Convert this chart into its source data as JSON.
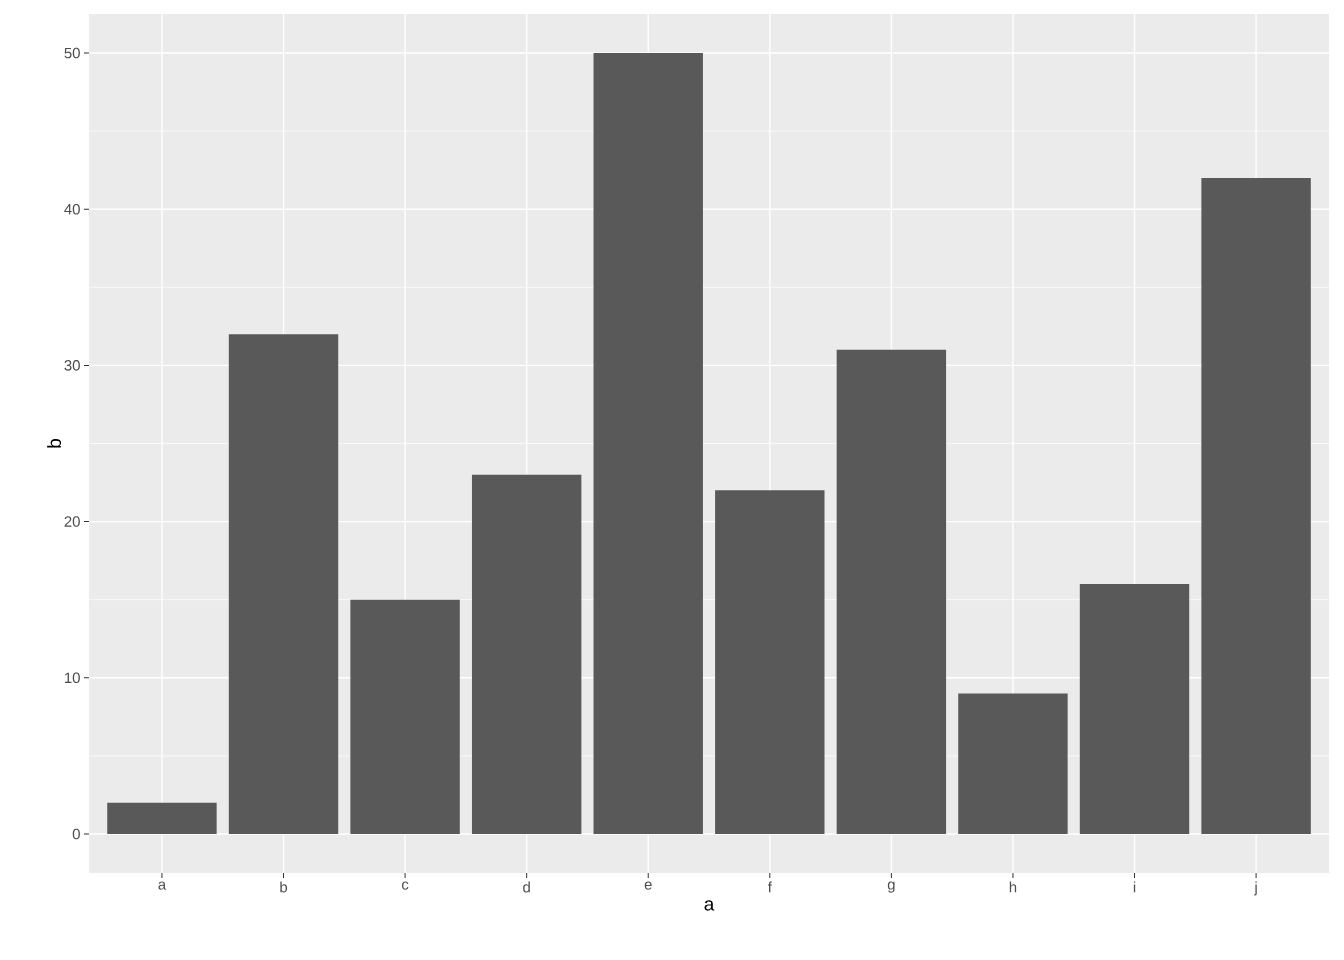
{
  "chart_data": {
    "type": "bar",
    "xlabel": "a",
    "ylabel": "b",
    "categories": [
      "a",
      "b",
      "c",
      "d",
      "e",
      "f",
      "g",
      "h",
      "i",
      "j"
    ],
    "values": [
      2,
      32,
      15,
      23,
      50,
      22,
      31,
      9,
      16,
      42
    ],
    "color": "#595959",
    "ylim": [
      -2.5,
      52.5
    ],
    "yticks": [
      0,
      10,
      20,
      30,
      40,
      50
    ],
    "grid": true
  }
}
